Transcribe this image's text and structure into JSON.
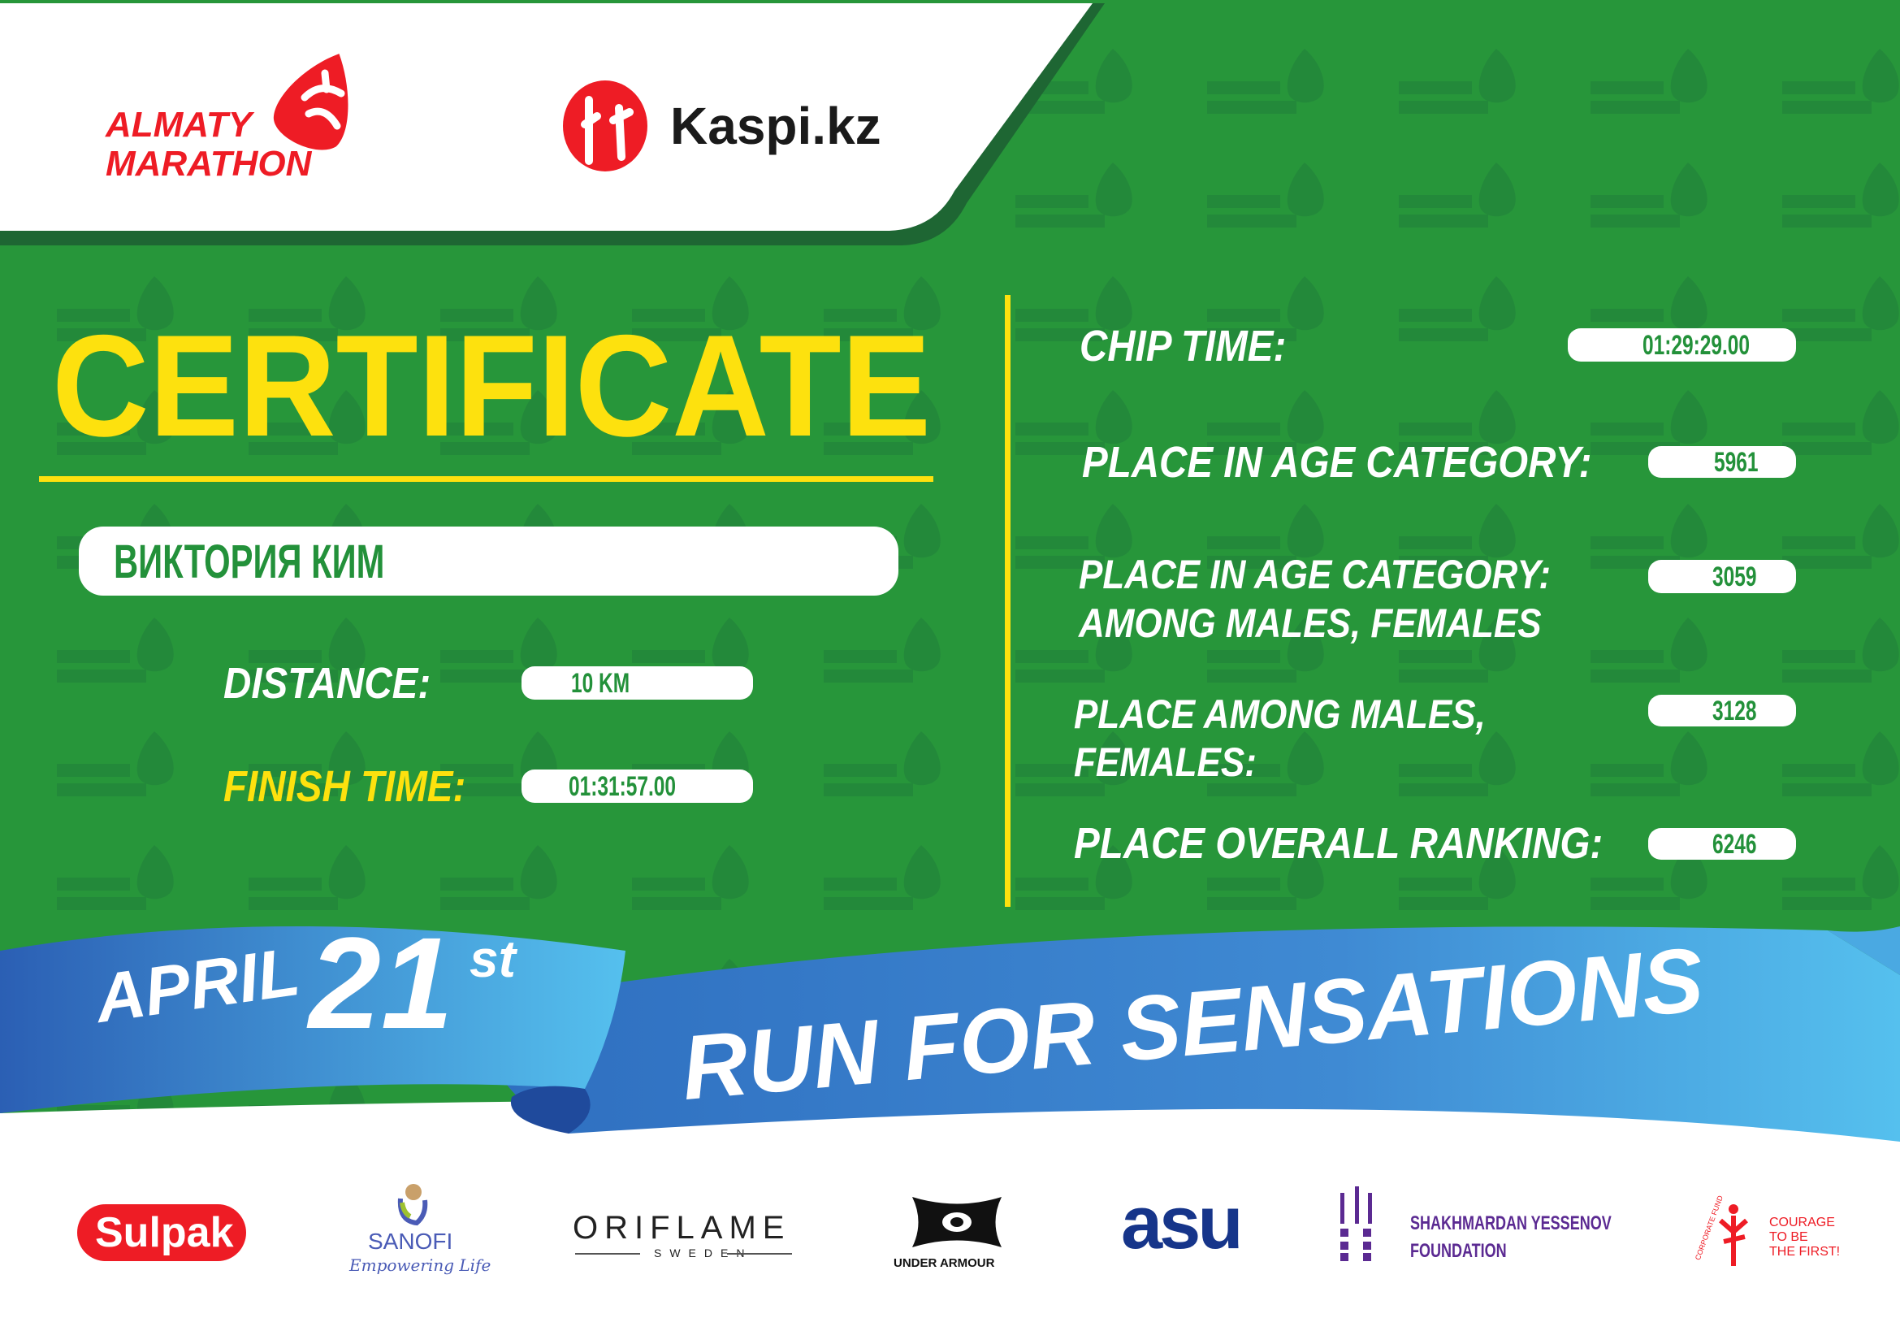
{
  "header": {
    "logo_almaty": {
      "line1": "ALMATY",
      "line2": "MARATHON"
    },
    "logo_kaspi": "Kaspi.kz"
  },
  "certificate": {
    "title": "CERTIFICATE",
    "runner_name": "ВИКТОРИЯ КИМ",
    "distance_label": "DISTANCE:",
    "distance_value": "10 KM",
    "finish_time_label": "FINISH TIME:",
    "finish_time_value": "01:31:57.00"
  },
  "results": {
    "chip_time_label": "CHIP TIME:",
    "chip_time_value": "01:29:29.00",
    "age_category_label": "PLACE IN AGE CATEGORY:",
    "age_category_value": "5961",
    "age_category_gender_label_1": "PLACE IN AGE CATEGORY:",
    "age_category_gender_label_2": "AMONG MALES, FEMALES",
    "age_category_gender_value": "3059",
    "gender_label_1": "PLACE AMONG MALES,",
    "gender_label_2": "FEMALES:",
    "gender_value": "3128",
    "overall_label": "PLACE OVERALL RANKING:",
    "overall_value": "6246"
  },
  "banner": {
    "month": "APRIL",
    "day": "21",
    "suffix": "st",
    "slogan": "RUN FOR SENSATIONS"
  },
  "sponsors": {
    "sulpak": "Sulpak",
    "sanofi": "SANOFI",
    "sanofi_tagline": "Empowering Life",
    "oriflame": "ORIFLAME",
    "oriflame_sub": "SWEDEN",
    "under_armour": "UNDER ARMOUR",
    "asu": "asu",
    "yessenov_1": "SHAKHMARDAN YESSENOV",
    "yessenov_2": "FOUNDATION",
    "courage_fund": "CORPORATE FUND",
    "courage_1": "COURAGE",
    "courage_2": "TO BE",
    "courage_3": "THE FIRST!"
  },
  "colors": {
    "green": "#27963a",
    "dark_green": "#1e6633",
    "yellow": "#fde10e",
    "red": "#ee1c25",
    "blue": "#3a86d0",
    "light_blue": "#55c0ee"
  }
}
